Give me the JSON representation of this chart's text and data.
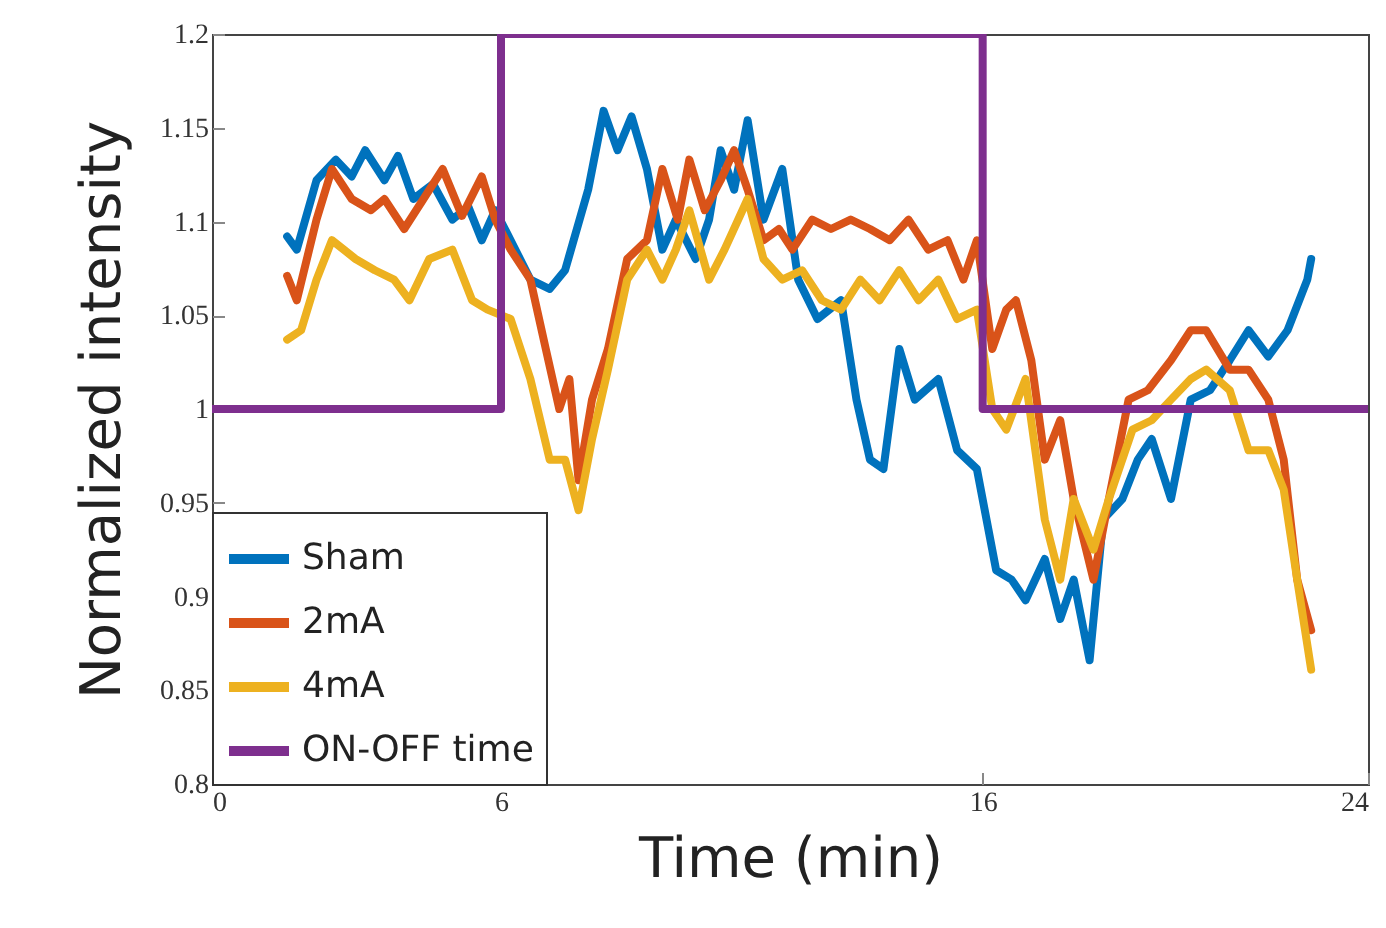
{
  "chart_data": {
    "type": "line",
    "xlabel": "Time (min)",
    "ylabel": "Normalized intensity",
    "xlim": [
      0,
      24
    ],
    "xticks": [
      0,
      6,
      16,
      24
    ],
    "ylim": [
      0.8,
      1.2
    ],
    "yticks": [
      0.8,
      0.85,
      0.9,
      0.95,
      1,
      1.05,
      1.1,
      1.15,
      1.2
    ],
    "grid": false,
    "legend": "bottom left",
    "line_style": "solid",
    "series": [
      {
        "name": "Sham",
        "color": "#0072bd",
        "x": [
          1.56,
          1.76,
          2.17,
          2.57,
          2.9,
          3.18,
          3.58,
          3.86,
          4.18,
          4.59,
          4.99,
          5.32,
          5.6,
          5.88,
          6.2,
          6.61,
          7.01,
          7.33,
          7.81,
          8.13,
          8.42,
          8.71,
          9.03,
          9.35,
          9.63,
          10.04,
          10.32,
          10.56,
          10.84,
          11.12,
          11.45,
          11.84,
          12.17,
          12.57,
          13.06,
          13.38,
          13.66,
          13.94,
          14.27,
          14.59,
          15.08,
          15.47,
          15.88,
          16.28,
          16.6,
          16.89,
          17.29,
          17.61,
          17.89,
          18.22,
          18.5,
          18.9,
          19.22,
          19.51,
          19.91,
          20.32,
          20.72,
          21.13,
          21.52,
          21.93,
          22.33,
          22.74,
          22.82
        ],
        "values": [
          1.092,
          1.085,
          1.122,
          1.133,
          1.124,
          1.138,
          1.122,
          1.135,
          1.112,
          1.12,
          1.101,
          1.108,
          1.09,
          1.106,
          1.09,
          1.069,
          1.064,
          1.074,
          1.117,
          1.159,
          1.138,
          1.156,
          1.128,
          1.085,
          1.101,
          1.08,
          1.101,
          1.138,
          1.117,
          1.154,
          1.101,
          1.128,
          1.069,
          1.048,
          1.058,
          1.005,
          0.973,
          0.968,
          1.032,
          1.005,
          1.016,
          0.978,
          0.968,
          0.914,
          0.909,
          0.898,
          0.92,
          0.888,
          0.909,
          0.866,
          0.941,
          0.952,
          0.973,
          0.984,
          0.952,
          1.005,
          1.01,
          1.026,
          1.042,
          1.028,
          1.042,
          1.069,
          1.08
        ]
      },
      {
        "name": "2mA",
        "color": "#d95319",
        "x": [
          1.56,
          1.76,
          2.17,
          2.49,
          2.9,
          3.3,
          3.58,
          3.99,
          4.39,
          4.79,
          5.19,
          5.6,
          5.88,
          6.2,
          6.61,
          6.93,
          7.21,
          7.42,
          7.61,
          7.89,
          8.22,
          8.62,
          9.03,
          9.35,
          9.67,
          9.91,
          10.23,
          10.56,
          10.84,
          11.12,
          11.45,
          11.77,
          12.05,
          12.46,
          12.85,
          13.26,
          13.66,
          14.07,
          14.46,
          14.87,
          15.27,
          15.6,
          15.88,
          16.2,
          16.49,
          16.69,
          17.01,
          17.29,
          17.61,
          17.89,
          18.3,
          18.62,
          19.03,
          19.43,
          19.91,
          20.32,
          20.64,
          21.13,
          21.52,
          21.93,
          22.25,
          22.53,
          22.82
        ],
        "values": [
          1.071,
          1.058,
          1.101,
          1.128,
          1.112,
          1.106,
          1.112,
          1.096,
          1.112,
          1.128,
          1.103,
          1.124,
          1.101,
          1.085,
          1.069,
          1.032,
          1.0,
          1.016,
          0.962,
          1.005,
          1.032,
          1.08,
          1.09,
          1.128,
          1.101,
          1.133,
          1.106,
          1.122,
          1.138,
          1.117,
          1.09,
          1.096,
          1.085,
          1.101,
          1.096,
          1.101,
          1.096,
          1.09,
          1.101,
          1.085,
          1.09,
          1.069,
          1.09,
          1.032,
          1.053,
          1.058,
          1.026,
          0.973,
          0.994,
          0.952,
          0.909,
          0.952,
          1.005,
          1.01,
          1.026,
          1.042,
          1.042,
          1.021,
          1.021,
          1.005,
          0.973,
          0.909,
          0.882
        ]
      },
      {
        "name": "4mA",
        "color": "#edb120",
        "x": [
          1.56,
          1.85,
          2.17,
          2.49,
          2.98,
          3.38,
          3.78,
          4.1,
          4.51,
          4.99,
          5.4,
          5.72,
          6.2,
          6.61,
          7.01,
          7.33,
          7.61,
          7.89,
          8.22,
          8.62,
          9.03,
          9.35,
          9.63,
          9.91,
          10.32,
          10.64,
          11.12,
          11.45,
          11.84,
          12.25,
          12.66,
          13.06,
          13.46,
          13.86,
          14.27,
          14.67,
          15.08,
          15.47,
          15.88,
          16.2,
          16.49,
          16.89,
          17.29,
          17.61,
          17.89,
          18.3,
          18.62,
          19.11,
          19.51,
          19.91,
          20.32,
          20.64,
          21.13,
          21.52,
          21.93,
          22.25,
          22.53,
          22.82
        ],
        "values": [
          1.037,
          1.042,
          1.069,
          1.09,
          1.08,
          1.074,
          1.069,
          1.058,
          1.08,
          1.085,
          1.058,
          1.053,
          1.048,
          1.016,
          0.973,
          0.973,
          0.946,
          0.984,
          1.021,
          1.069,
          1.085,
          1.069,
          1.085,
          1.106,
          1.069,
          1.085,
          1.112,
          1.08,
          1.069,
          1.074,
          1.058,
          1.053,
          1.069,
          1.058,
          1.074,
          1.058,
          1.069,
          1.048,
          1.053,
          1.0,
          0.989,
          1.016,
          0.941,
          0.909,
          0.952,
          0.925,
          0.952,
          0.989,
          0.994,
          1.005,
          1.016,
          1.021,
          1.01,
          0.978,
          0.978,
          0.957,
          0.909,
          0.861
        ]
      },
      {
        "name": "ON-OFF time",
        "color": "#7e2f8e",
        "type": "line",
        "x": [
          0,
          6,
          6,
          16,
          16,
          24
        ],
        "values": [
          1,
          1,
          1.2,
          1.2,
          1,
          1
        ]
      }
    ]
  }
}
